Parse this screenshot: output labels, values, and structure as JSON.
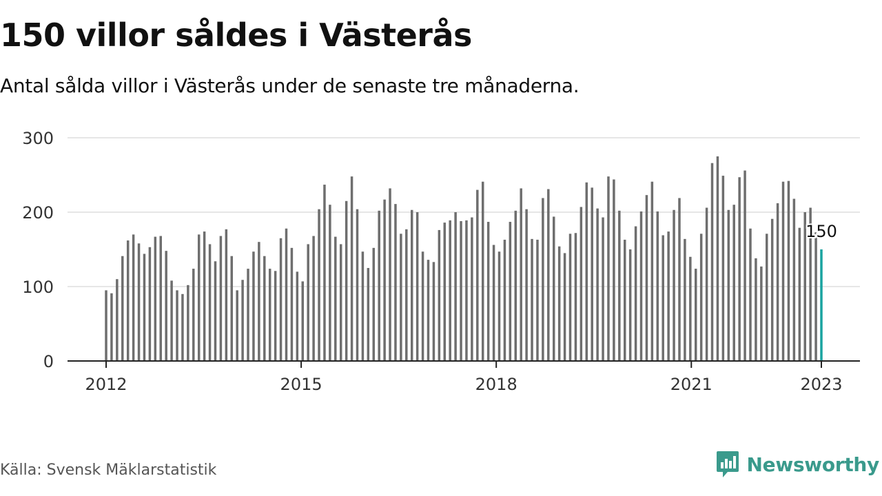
{
  "header": {
    "title": "150 villor såldes i Västerås",
    "subtitle": "Antal sålda villor i Västerås under de senaste tre månaderna."
  },
  "footer": {
    "source": "Källa: Svensk Mäklarstatistik",
    "brand": "Newsworthy",
    "brand_icon": "newsworthy-logo-icon"
  },
  "colors": {
    "bar": "#6e6e6e",
    "highlight": "#19a3a0",
    "grid": "#dddddd",
    "axis": "#222222",
    "brand": "#3a9a8c"
  },
  "chart_data": {
    "type": "bar",
    "ylim": [
      0,
      300
    ],
    "y_ticks": [
      0,
      100,
      200,
      300
    ],
    "x_ticks": [
      "2012",
      "2015",
      "2018",
      "2021",
      "2023"
    ],
    "x_tick_positions": [
      2012,
      2015,
      2018,
      2021,
      2023
    ],
    "x_start": 2012,
    "x_end": 2023,
    "grid": true,
    "values": [
      95,
      91,
      110,
      141,
      162,
      170,
      158,
      144,
      153,
      167,
      168,
      148,
      108,
      95,
      90,
      102,
      124,
      170,
      174,
      157,
      134,
      168,
      177,
      141,
      95,
      109,
      124,
      147,
      160,
      141,
      124,
      121,
      165,
      178,
      152,
      120,
      107,
      157,
      168,
      204,
      237,
      210,
      167,
      157,
      215,
      248,
      204,
      147,
      125,
      152,
      202,
      217,
      232,
      211,
      171,
      177,
      203,
      200,
      147,
      136,
      133,
      176,
      186,
      189,
      200,
      188,
      189,
      193,
      230,
      241,
      187,
      156,
      147,
      163,
      187,
      202,
      232,
      204,
      164,
      163,
      219,
      231,
      194,
      154,
      145,
      171,
      172,
      207,
      240,
      233,
      205,
      193,
      248,
      244,
      202,
      163,
      150,
      181,
      201,
      223,
      241,
      201,
      169,
      174,
      203,
      219,
      164,
      140,
      124,
      171,
      206,
      266,
      275,
      249,
      203,
      210,
      247,
      256,
      178,
      138,
      127,
      171,
      191,
      212,
      241,
      242,
      218,
      179,
      200,
      206,
      173,
      150
    ],
    "highlight_index": 131,
    "highlight_label": "150"
  }
}
